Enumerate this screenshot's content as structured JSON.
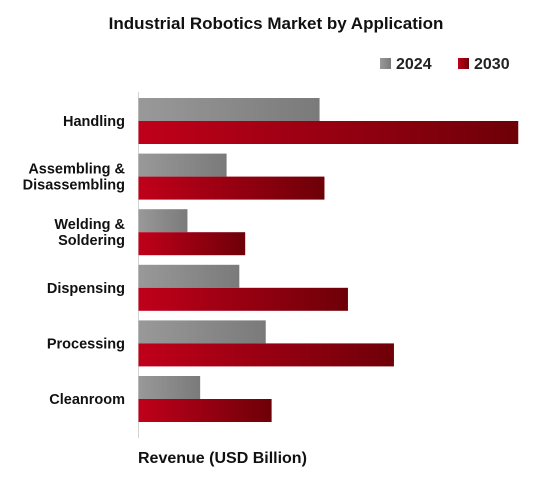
{
  "chart_data": {
    "type": "bar",
    "orientation": "horizontal",
    "title": "Industrial Robotics Market by Application",
    "xlabel": "Revenue (USD Billion)",
    "ylabel": "",
    "categories": [
      "Handling",
      "Assembling & Disassembling",
      "Welding & Soldering",
      "Dispensing",
      "Processing",
      "Cleanroom"
    ],
    "series": [
      {
        "name": "2024",
        "color": "#8c8c8c",
        "values": [
          18.5,
          9.0,
          5.0,
          10.3,
          13.0,
          6.3
        ]
      },
      {
        "name": "2030",
        "color": "#b00012",
        "values": [
          38.8,
          19.0,
          10.9,
          21.4,
          26.1,
          13.6
        ]
      }
    ],
    "xlim": [
      0,
      40
    ],
    "grid": false,
    "legend_position": "top-right",
    "axis_ticks_visible": false
  }
}
